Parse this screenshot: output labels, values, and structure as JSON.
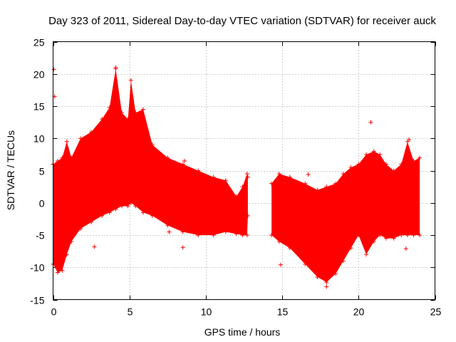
{
  "chart_data": {
    "type": "scatter",
    "title": "Day 323 of 2011, Sidereal Day-to-day VTEC variation (SDTVAR) for receiver auck",
    "xlabel": "GPS time / hours",
    "ylabel": "SDTVAR / TECUs",
    "xlim": [
      0,
      25
    ],
    "ylim": [
      -15,
      25
    ],
    "xticks": [
      0,
      5,
      10,
      15,
      20,
      25
    ],
    "yticks": [
      -15,
      -10,
      -5,
      0,
      5,
      10,
      15,
      20,
      25
    ],
    "grid": true,
    "marker": "+",
    "color": "#ff0000",
    "segments": [
      {
        "name": "dense-data-segment-1",
        "envelope": [
          [
            0.0,
            -9.5,
            6.0
          ],
          [
            0.3,
            -10.8,
            6.5
          ],
          [
            0.6,
            -10.5,
            7.0
          ],
          [
            0.9,
            -8.0,
            9.5
          ],
          [
            1.2,
            -6.0,
            7.0
          ],
          [
            1.8,
            -4.0,
            10.0
          ],
          [
            2.5,
            -3.0,
            11.0
          ],
          [
            3.2,
            -2.0,
            13.0
          ],
          [
            3.7,
            -1.5,
            14.8
          ],
          [
            4.1,
            -1.0,
            20.8
          ],
          [
            4.5,
            -0.5,
            14.0
          ],
          [
            4.9,
            -0.5,
            13.0
          ],
          [
            5.1,
            0.0,
            19.0
          ],
          [
            5.4,
            -0.5,
            14.0
          ],
          [
            5.9,
            -1.5,
            14.5
          ],
          [
            6.5,
            -2.0,
            9.0
          ],
          [
            7.5,
            -3.5,
            7.0
          ],
          [
            8.5,
            -4.5,
            6.0
          ],
          [
            9.5,
            -5.0,
            5.0
          ],
          [
            10.5,
            -5.0,
            4.0
          ],
          [
            11.3,
            -4.5,
            3.5
          ],
          [
            12.0,
            -4.8,
            1.0
          ],
          [
            12.4,
            -5.0,
            2.5
          ],
          [
            12.7,
            -5.0,
            4.5
          ],
          [
            12.75,
            -2.0,
            4.0
          ]
        ]
      },
      {
        "name": "dense-data-segment-2",
        "envelope": [
          [
            14.3,
            -5.0,
            3.0
          ],
          [
            14.8,
            -6.0,
            4.5
          ],
          [
            15.5,
            -7.0,
            4.0
          ],
          [
            16.5,
            -9.5,
            3.0
          ],
          [
            17.3,
            -11.5,
            2.0
          ],
          [
            17.9,
            -12.3,
            2.5
          ],
          [
            18.5,
            -11.0,
            3.0
          ],
          [
            19.0,
            -9.0,
            4.5
          ],
          [
            19.5,
            -7.0,
            5.5
          ],
          [
            20.0,
            -5.0,
            6.0
          ],
          [
            20.5,
            -8.0,
            7.5
          ],
          [
            21.0,
            -6.0,
            8.0
          ],
          [
            21.4,
            -5.0,
            7.5
          ],
          [
            21.8,
            -5.5,
            6.0
          ],
          [
            22.3,
            -5.5,
            5.0
          ],
          [
            22.8,
            -5.0,
            6.0
          ],
          [
            23.2,
            -5.0,
            9.5
          ],
          [
            23.6,
            -5.0,
            6.5
          ],
          [
            24.0,
            -5.0,
            7.0
          ]
        ]
      }
    ],
    "outliers": [
      {
        "x": 0.05,
        "y": 20.7
      },
      {
        "x": 0.1,
        "y": 16.5
      },
      {
        "x": 2.7,
        "y": -6.8
      },
      {
        "x": 4.1,
        "y": 21.0
      },
      {
        "x": 7.6,
        "y": -4.5
      },
      {
        "x": 8.5,
        "y": -6.9
      },
      {
        "x": 8.6,
        "y": 6.5
      },
      {
        "x": 14.9,
        "y": -9.6
      },
      {
        "x": 16.7,
        "y": 4.4
      },
      {
        "x": 17.9,
        "y": -13.0
      },
      {
        "x": 20.8,
        "y": 12.5
      },
      {
        "x": 23.1,
        "y": -7.1
      },
      {
        "x": 23.3,
        "y": 9.8
      }
    ]
  }
}
